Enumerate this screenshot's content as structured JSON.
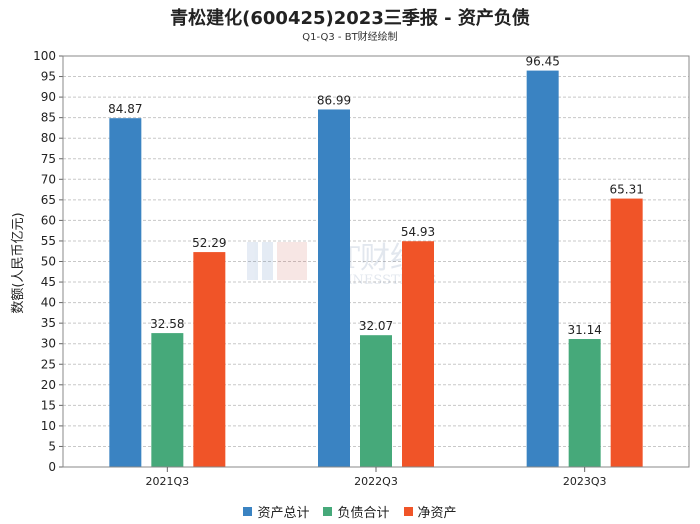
{
  "chart_data": {
    "type": "bar",
    "title": "青松建化(600425)2023三季报 - 资产负债",
    "subtitle": "Q1-Q3 - BT财经绘制",
    "ylabel": "数额(人民币亿元)",
    "xlabel": "",
    "categories": [
      "2021Q3",
      "2022Q3",
      "2023Q3"
    ],
    "ylim": [
      0,
      100
    ],
    "yticks": [
      0,
      5,
      10,
      15,
      20,
      25,
      30,
      35,
      40,
      45,
      50,
      55,
      60,
      65,
      70,
      75,
      80,
      85,
      90,
      95,
      100
    ],
    "grid": true,
    "legend_position": "bottom",
    "series": [
      {
        "name": "资产总计",
        "color": "#3a83c2",
        "values": [
          84.87,
          86.99,
          96.45
        ],
        "labels": [
          "84.87",
          "86.99",
          "96.45"
        ]
      },
      {
        "name": "负债合计",
        "color": "#46a97a",
        "values": [
          32.58,
          32.07,
          31.14
        ],
        "labels": [
          "32.58",
          "32.07",
          "31.14"
        ]
      },
      {
        "name": "净资产",
        "color": "#f05428",
        "values": [
          52.29,
          54.93,
          65.31
        ],
        "labels": [
          "52.29",
          "54.93",
          "65.31"
        ]
      }
    ]
  },
  "watermark": {
    "logo": "BT财经",
    "text": "BUSINESSTIMES"
  }
}
